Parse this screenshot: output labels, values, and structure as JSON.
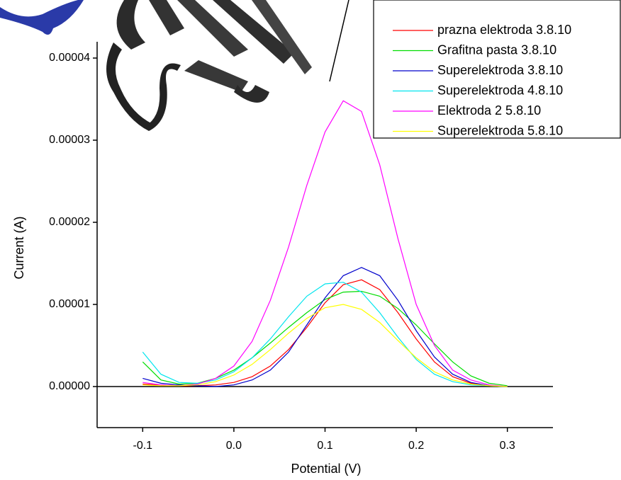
{
  "chart_data": {
    "type": "line",
    "x_label": "Potential (V)",
    "y_label": "Current (A)",
    "x": [
      -0.1,
      -0.08,
      -0.06,
      -0.04,
      -0.02,
      0.0,
      0.02,
      0.04,
      0.06,
      0.08,
      0.1,
      0.12,
      0.14,
      0.16,
      0.18,
      0.2,
      0.22,
      0.24,
      0.26,
      0.28,
      0.3
    ],
    "series": [
      {
        "name": "prazna elektroda 3.8.10",
        "color": "#ff0000",
        "values": [
          3e-07,
          2e-07,
          1e-07,
          1e-07,
          2e-07,
          5e-07,
          1.2e-06,
          2.5e-06,
          4.5e-06,
          7.2e-06,
          1.02e-05,
          1.24e-05,
          1.3e-05,
          1.18e-05,
          9e-06,
          5.8e-06,
          3e-06,
          1.2e-06,
          4e-07,
          1e-07,
          0
        ]
      },
      {
        "name": "Grafitna pasta 3.8.10",
        "color": "#00dd00",
        "values": [
          3e-06,
          8e-07,
          3e-07,
          4e-07,
          1e-06,
          2e-06,
          3.5e-06,
          5.3e-06,
          7.2e-06,
          9e-06,
          1.06e-05,
          1.15e-05,
          1.16e-05,
          1.1e-05,
          9.5e-06,
          7.5e-06,
          5.2e-06,
          3e-06,
          1.3e-06,
          4e-07,
          1e-07
        ]
      },
      {
        "name": "Superelektroda 3.8.10",
        "color": "#0000cc",
        "values": [
          1e-06,
          4e-07,
          2e-07,
          1e-07,
          0,
          2e-07,
          8e-07,
          2e-06,
          4.2e-06,
          7.5e-06,
          1.08e-05,
          1.35e-05,
          1.45e-05,
          1.35e-05,
          1.05e-05,
          6.8e-06,
          3.6e-06,
          1.5e-06,
          5e-07,
          1e-07,
          0
        ]
      },
      {
        "name": "Superelektroda 4.8.10",
        "color": "#00e5ee",
        "values": [
          4.2e-06,
          1.5e-06,
          5e-07,
          4e-07,
          8e-07,
          1.8e-06,
          3.5e-06,
          5.8e-06,
          8.5e-06,
          1.1e-05,
          1.25e-05,
          1.27e-05,
          1.15e-05,
          9e-06,
          6e-06,
          3.3e-06,
          1.5e-06,
          6e-07,
          2e-07,
          1e-07,
          0
        ]
      },
      {
        "name": "Elektroda 2 5.8.10",
        "color": "#ff00ff",
        "values": [
          5e-07,
          2e-07,
          1e-07,
          3e-07,
          1e-06,
          2.5e-06,
          5.5e-06,
          1.05e-05,
          1.7e-05,
          2.45e-05,
          3.1e-05,
          3.48e-05,
          3.35e-05,
          2.7e-05,
          1.8e-05,
          1e-05,
          5e-06,
          2e-06,
          8e-07,
          2e-07,
          0
        ]
      },
      {
        "name": "Superelektroda 5.8.10",
        "color": "#ffff00",
        "values": [
          2e-07,
          1e-07,
          1e-07,
          2e-07,
          6e-07,
          1.4e-06,
          2.7e-06,
          4.5e-06,
          6.5e-06,
          8.3e-06,
          9.6e-06,
          1e-05,
          9.4e-06,
          7.8e-06,
          5.6e-06,
          3.5e-06,
          1.8e-06,
          8e-07,
          3e-07,
          1e-07,
          0
        ]
      }
    ],
    "xlim": [
      -0.15,
      0.35
    ],
    "ylim": [
      -5e-06,
      4.5e-05
    ],
    "xticks": [
      -0.1,
      {
        "value": 0,
        "label": "0.0"
      },
      0.1,
      0.2,
      0.3
    ],
    "yticks": [
      {
        "value": 0,
        "label": "0.00000"
      },
      {
        "value": 1e-05,
        "label": "0.00001"
      },
      {
        "value": 2e-05,
        "label": "0.00002"
      },
      {
        "value": 3e-05,
        "label": "0.00003"
      },
      {
        "value": 4e-05,
        "label": "0.00004"
      }
    ],
    "grid": false,
    "legend": "upper right"
  }
}
